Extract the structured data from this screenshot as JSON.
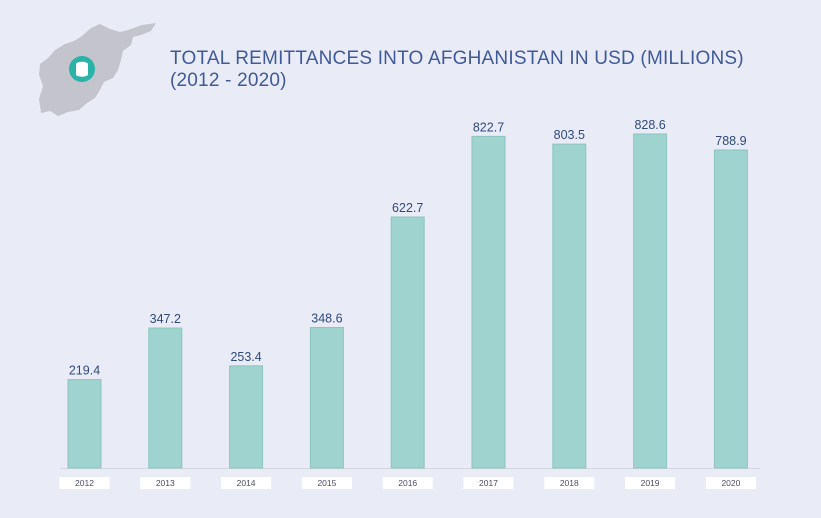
{
  "colors": {
    "background": "#e9ecf6",
    "bar": "#9fd3cf",
    "bar_edge": "#8cc5c1",
    "title": "#3f5a98",
    "value_label": "#2f4a7c",
    "tick_label": "#4a4f62",
    "map": "#c4c5cc",
    "badge": "#2bb3aa"
  },
  "icons": {
    "map": "afghanistan-map-icon",
    "coins": "coins-icon"
  },
  "chart_data": {
    "type": "bar",
    "title": "TOTAL REMITTANCES INTO AFGHANISTAN IN USD (MILLIONS)",
    "subtitle": "(2012 - 2020)",
    "categories": [
      "2012",
      "2013",
      "2014",
      "2015",
      "2016",
      "2017",
      "2018",
      "2019",
      "2020"
    ],
    "values": [
      219.4,
      347.2,
      253.4,
      348.6,
      622.7,
      822.7,
      803.5,
      828.6,
      788.9
    ],
    "value_labels": [
      "219.4",
      "347.2",
      "253.4",
      "348.6",
      "622.7",
      "822.7",
      "803.5",
      "828.6",
      "788.9"
    ],
    "xlabel": "",
    "ylabel": "",
    "ylim": [
      0,
      828.6
    ],
    "grid": false,
    "legend": "none"
  }
}
